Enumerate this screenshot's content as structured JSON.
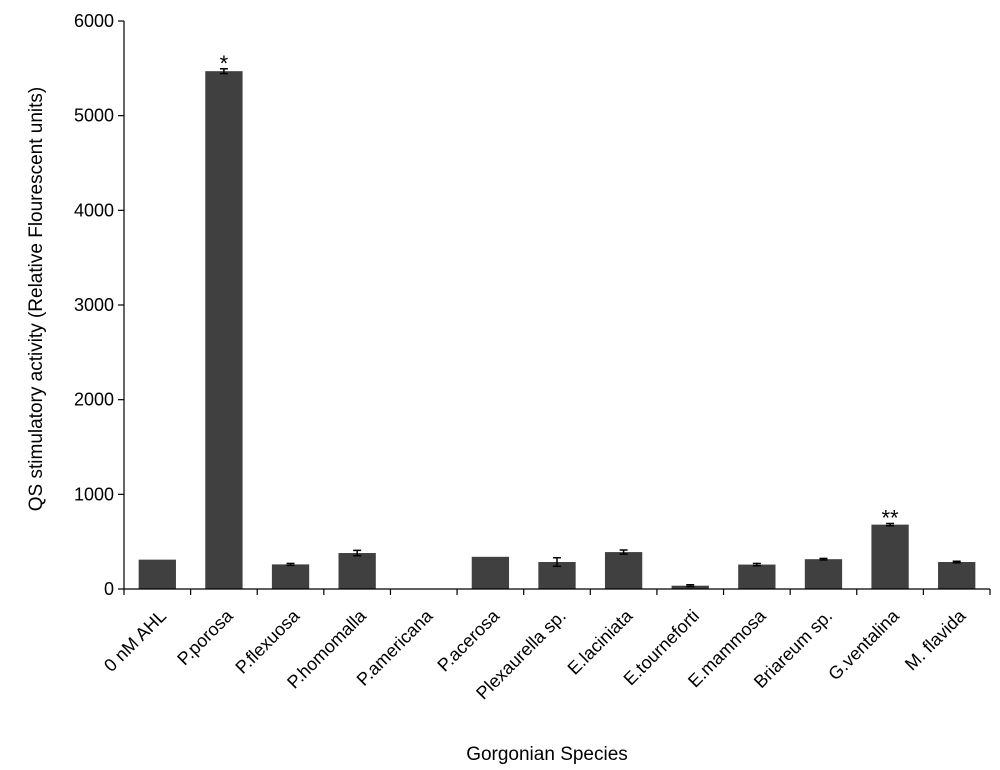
{
  "chart_data": {
    "type": "bar",
    "title": "",
    "xlabel": "Gorgonian Species",
    "ylabel": "QS stimulatory activity (Relative Flourescent units)",
    "ylim": [
      0,
      6000
    ],
    "yticks": [
      "0",
      "1000",
      "2000",
      "3000",
      "4000",
      "5000",
      "6000"
    ],
    "grid": false,
    "legend": "none",
    "bar_color": "#404040",
    "categories": [
      "0 nM AHL",
      "P.porosa",
      "P.flexuosa",
      "P.homomalla",
      "P.americana",
      "P.acerosa",
      "Plexaurella sp.",
      "E.laciniata",
      "E.tourneforti",
      "E.mammosa",
      "Briareum sp.",
      "G.ventalina",
      "M. flavida"
    ],
    "values": [
      310,
      5470,
      260,
      380,
      0,
      340,
      285,
      390,
      35,
      258,
      315,
      680,
      285
    ],
    "errors": [
      0,
      25,
      10,
      28,
      0,
      0,
      45,
      22,
      10,
      12,
      8,
      12,
      8
    ],
    "significance": [
      "",
      "*",
      "",
      "",
      "",
      "",
      "",
      "",
      "",
      "",
      "",
      "**",
      ""
    ]
  }
}
